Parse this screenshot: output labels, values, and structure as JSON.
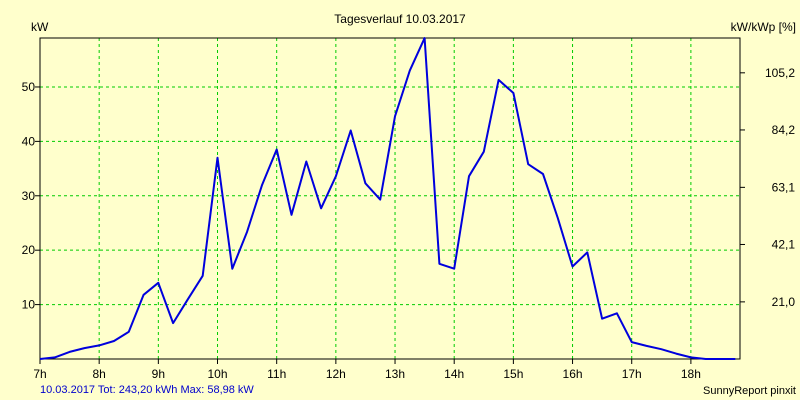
{
  "chart_data": {
    "type": "line",
    "title": "Tagesverlauf 10.03.2017",
    "y_left_label": "kW",
    "y_right_label": "kW/kWp [%]",
    "footer_left": "10.03.2017 Tot: 243,20 kWh Max: 58,98 kW",
    "footer_right": "SunnyReport pinxit",
    "xlim": [
      7,
      18.83
    ],
    "ylim": [
      0,
      59
    ],
    "grid": true,
    "x_ticks": [
      {
        "v": 7,
        "label": "7h"
      },
      {
        "v": 8,
        "label": "8h"
      },
      {
        "v": 9,
        "label": "9h"
      },
      {
        "v": 10,
        "label": "10h"
      },
      {
        "v": 11,
        "label": "11h"
      },
      {
        "v": 12,
        "label": "12h"
      },
      {
        "v": 13,
        "label": "13h"
      },
      {
        "v": 14,
        "label": "14h"
      },
      {
        "v": 15,
        "label": "15h"
      },
      {
        "v": 16,
        "label": "16h"
      },
      {
        "v": 17,
        "label": "17h"
      },
      {
        "v": 18,
        "label": "18h"
      }
    ],
    "y_ticks_left": [
      {
        "v": 10,
        "label": "10"
      },
      {
        "v": 20,
        "label": "20"
      },
      {
        "v": 30,
        "label": "30"
      },
      {
        "v": 40,
        "label": "40"
      },
      {
        "v": 50,
        "label": "50"
      }
    ],
    "y_ticks_right": [
      {
        "v": 10.5,
        "label": "21,0"
      },
      {
        "v": 21.05,
        "label": "42,1"
      },
      {
        "v": 31.55,
        "label": "63,1"
      },
      {
        "v": 42.1,
        "label": "84,2"
      },
      {
        "v": 52.6,
        "label": "105,2"
      }
    ],
    "line_color": "#0000dd",
    "grid_color": "#00cc00",
    "series": [
      {
        "x": [
          7.0,
          7.25,
          7.5,
          7.75,
          8.0,
          8.25,
          8.5,
          8.75,
          9.0,
          9.25,
          9.5,
          9.75,
          10.0,
          10.25,
          10.5,
          10.75,
          11.0,
          11.25,
          11.5,
          11.75,
          12.0,
          12.25,
          12.5,
          12.75,
          13.0,
          13.25,
          13.5,
          13.75,
          14.0,
          14.25,
          14.5,
          14.75,
          15.0,
          15.25,
          15.5,
          15.75,
          16.0,
          16.25,
          16.5,
          16.75,
          17.0,
          17.25,
          17.5,
          17.75,
          18.0,
          18.25,
          18.5,
          18.75
        ],
        "y": [
          0.0,
          0.3,
          1.3,
          2.0,
          2.5,
          3.3,
          5.0,
          11.8,
          14.0,
          6.6,
          11.0,
          15.3,
          37.0,
          16.6,
          23.4,
          31.9,
          38.5,
          26.5,
          36.3,
          27.7,
          33.6,
          42.0,
          32.3,
          29.3,
          44.6,
          53.0,
          58.98,
          17.5,
          16.6,
          33.6,
          38.1,
          51.3,
          48.9,
          35.8,
          34.0,
          25.9,
          17.0,
          19.6,
          7.4,
          8.4,
          3.1,
          2.4,
          1.8,
          1.0,
          0.3,
          0.0,
          0.0,
          0.0
        ]
      }
    ]
  }
}
